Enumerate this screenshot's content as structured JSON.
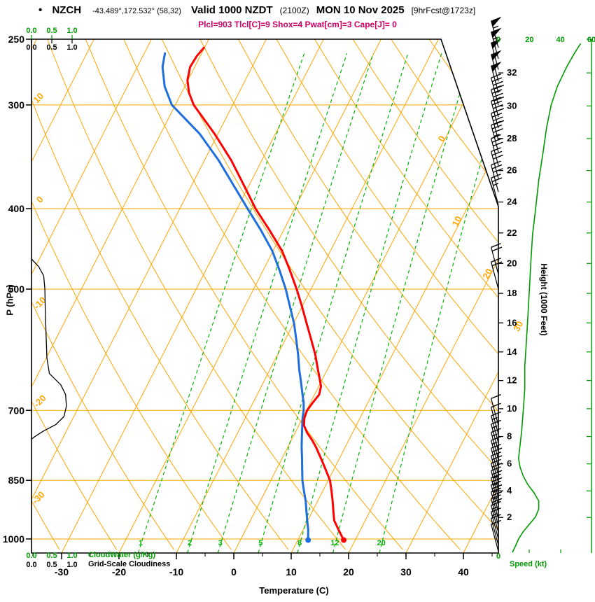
{
  "header": {
    "bullet": "•",
    "station": "NZCH",
    "coords": "-43.489°,172.532° (58,32)",
    "valid_label": "Valid 1000 NZDT",
    "valid_utc": "(2100Z)",
    "valid_date": "MON 10 Nov 2025",
    "forecast_tag": "[9hrFcst@1723z]",
    "params_line": "Plcl=903 Tlcl[C]=9 Shox=4 Pwat[cm]=3 Cape[J]= 0"
  },
  "axes": {
    "pressure_title": "P (hPa)",
    "pressure_ticks_hpa": [
      250,
      300,
      400,
      500,
      700,
      850,
      1000
    ],
    "temperature_title": "Temperature (C)",
    "temperature_ticks_c": [
      -30,
      -20,
      -10,
      0,
      10,
      20,
      30,
      40
    ],
    "height_title": "Height (1000 Feet)",
    "height_ticks_kft": [
      2,
      4,
      6,
      8,
      10,
      12,
      14,
      16,
      18,
      20,
      22,
      24,
      26,
      28,
      30,
      32
    ],
    "speed_title": "Speed (kt)",
    "speed_ticks_kt": [
      0,
      20,
      40,
      60
    ],
    "speed_origin_label": "0",
    "cloudwater_title": "CloudWater (g/Kg)",
    "cloudwater_scale": [
      "0.0",
      "0.5",
      "1.0"
    ],
    "cloudiness_title": "Grid-Scale Cloudiness",
    "cloudiness_scale": [
      "0.0",
      "0.5",
      "1.0"
    ]
  },
  "colors": {
    "grid_orange": "#FFA500",
    "mixing_green": "#00B400",
    "green_text": "#009900",
    "temperature_red": "#FF0000",
    "dewpoint_blue": "#1E6EDC",
    "params_magenta": "#CC0066",
    "black": "#000000"
  },
  "chart_data": {
    "type": "line",
    "subtype": "skew-t log-p sounding",
    "title": "Valid 1000 NZDT (2100Z) MON 10 Nov 2025 [9hrFcst@1723z]",
    "station": "NZCH -43.489°,172.532° (58,32)",
    "xlabel": "Temperature (C)",
    "ylabel": "P (hPa)",
    "ylabel_right": "Height (1000 Feet)",
    "pressure_range_hpa": [
      250,
      1040
    ],
    "temperature_axis_c": [
      -35,
      45
    ],
    "isotherm_step_c": 10,
    "dry_adiabat_step_c": 10,
    "isotherm_inline_labels_c": [
      0,
      10,
      20,
      30
    ],
    "dry_adiabat_inline_labels_c": [
      10,
      0,
      -10,
      -20,
      -30
    ],
    "mixing_ratio_lines_g_kg": [
      1,
      2,
      3,
      5,
      8,
      12,
      20
    ],
    "surface_dots": {
      "pressure_hpa": 1003,
      "temperature_c": 18.0,
      "dewpoint_c": 11.8
    },
    "temperature_profile": {
      "name": "temperature (red)",
      "points_p_t": [
        [
          1003,
          18.0
        ],
        [
          975,
          16.2
        ],
        [
          950,
          14.6
        ],
        [
          925,
          13.6
        ],
        [
          900,
          12.6
        ],
        [
          875,
          11.5
        ],
        [
          850,
          10.3
        ],
        [
          825,
          8.6
        ],
        [
          800,
          6.8
        ],
        [
          775,
          4.9
        ],
        [
          760,
          3.6
        ],
        [
          745,
          2.1
        ],
        [
          730,
          0.9
        ],
        [
          715,
          0.3
        ],
        [
          700,
          0.1
        ],
        [
          685,
          0.4
        ],
        [
          670,
          0.8
        ],
        [
          655,
          0.4
        ],
        [
          640,
          -0.6
        ],
        [
          620,
          -2.0
        ],
        [
          600,
          -3.4
        ],
        [
          575,
          -5.5
        ],
        [
          550,
          -7.7
        ],
        [
          525,
          -10.0
        ],
        [
          500,
          -12.5
        ],
        [
          475,
          -15.3
        ],
        [
          450,
          -18.4
        ],
        [
          425,
          -22.4
        ],
        [
          400,
          -26.8
        ],
        [
          375,
          -30.9
        ],
        [
          350,
          -35.3
        ],
        [
          325,
          -40.6
        ],
        [
          300,
          -46.8
        ],
        [
          290,
          -48.7
        ],
        [
          280,
          -50.1
        ],
        [
          270,
          -50.8
        ],
        [
          262,
          -50.6
        ],
        [
          256,
          -50.1
        ]
      ]
    },
    "dewpoint_profile": {
      "name": "dewpoint (blue)",
      "points_p_t": [
        [
          1003,
          11.8
        ],
        [
          975,
          10.9
        ],
        [
          950,
          9.9
        ],
        [
          925,
          8.9
        ],
        [
          900,
          7.9
        ],
        [
          875,
          6.7
        ],
        [
          850,
          5.5
        ],
        [
          825,
          4.5
        ],
        [
          800,
          3.5
        ],
        [
          775,
          2.4
        ],
        [
          750,
          1.4
        ],
        [
          730,
          0.6
        ],
        [
          715,
          0.0
        ],
        [
          700,
          -0.5
        ],
        [
          685,
          -1.2
        ],
        [
          670,
          -2.1
        ],
        [
          650,
          -3.3
        ],
        [
          625,
          -4.9
        ],
        [
          600,
          -6.4
        ],
        [
          575,
          -8.1
        ],
        [
          550,
          -9.9
        ],
        [
          525,
          -12.1
        ],
        [
          500,
          -14.4
        ],
        [
          475,
          -17.1
        ],
        [
          450,
          -20.1
        ],
        [
          425,
          -23.9
        ],
        [
          400,
          -28.2
        ],
        [
          375,
          -32.7
        ],
        [
          350,
          -37.5
        ],
        [
          325,
          -43.2
        ],
        [
          300,
          -50.6
        ],
        [
          285,
          -53.5
        ],
        [
          270,
          -55.6
        ],
        [
          260,
          -56.4
        ]
      ]
    },
    "cloudiness_profile": {
      "name": "grid-scale cloudiness (black, 0-1 top/bottom scale)",
      "points_p_frac": [
        [
          460,
          0.0
        ],
        [
          470,
          0.18
        ],
        [
          482,
          0.3
        ],
        [
          500,
          0.33
        ],
        [
          530,
          0.34
        ],
        [
          570,
          0.36
        ],
        [
          605,
          0.38
        ],
        [
          632,
          0.44
        ],
        [
          652,
          0.72
        ],
        [
          670,
          0.84
        ],
        [
          692,
          0.86
        ],
        [
          712,
          0.8
        ],
        [
          728,
          0.6
        ],
        [
          742,
          0.28
        ],
        [
          753,
          0.08
        ],
        [
          758,
          0.0
        ]
      ]
    },
    "wind_speed_profile_kt": {
      "name": "wind speed (green, kt)",
      "points_p_kt": [
        [
          1038,
          9
        ],
        [
          1020,
          11
        ],
        [
          1000,
          13
        ],
        [
          980,
          16
        ],
        [
          960,
          20
        ],
        [
          940,
          24
        ],
        [
          920,
          26
        ],
        [
          900,
          26
        ],
        [
          880,
          23
        ],
        [
          860,
          19
        ],
        [
          840,
          16
        ],
        [
          820,
          14
        ],
        [
          800,
          13
        ],
        [
          770,
          14
        ],
        [
          740,
          15
        ],
        [
          700,
          16
        ],
        [
          660,
          17
        ],
        [
          620,
          17
        ],
        [
          580,
          18
        ],
        [
          540,
          19
        ],
        [
          500,
          20
        ],
        [
          460,
          21
        ],
        [
          430,
          22
        ],
        [
          400,
          24
        ],
        [
          370,
          26
        ],
        [
          340,
          29
        ],
        [
          320,
          31
        ],
        [
          300,
          34
        ],
        [
          285,
          38
        ],
        [
          270,
          44
        ],
        [
          260,
          49
        ],
        [
          253,
          53
        ]
      ]
    },
    "wind_barbs_kt": [
      [
        256,
        55
      ],
      [
        264,
        55
      ],
      [
        272,
        50
      ],
      [
        281,
        50
      ],
      [
        290,
        48
      ],
      [
        300,
        45
      ],
      [
        310,
        42
      ],
      [
        320,
        40
      ],
      [
        331,
        38
      ],
      [
        342,
        35
      ],
      [
        355,
        32
      ],
      [
        368,
        30
      ],
      [
        382,
        28
      ],
      [
        396,
        26
      ],
      [
        480,
        22
      ],
      [
        500,
        20
      ],
      [
        730,
        12
      ],
      [
        748,
        12
      ],
      [
        766,
        13
      ],
      [
        784,
        14
      ],
      [
        802,
        15
      ],
      [
        820,
        16
      ],
      [
        838,
        18
      ],
      [
        856,
        20
      ],
      [
        874,
        22
      ],
      [
        892,
        24
      ],
      [
        910,
        25
      ],
      [
        928,
        25
      ],
      [
        946,
        23
      ],
      [
        964,
        20
      ],
      [
        982,
        16
      ],
      [
        1000,
        13
      ],
      [
        1018,
        11
      ],
      [
        1035,
        10
      ]
    ]
  }
}
